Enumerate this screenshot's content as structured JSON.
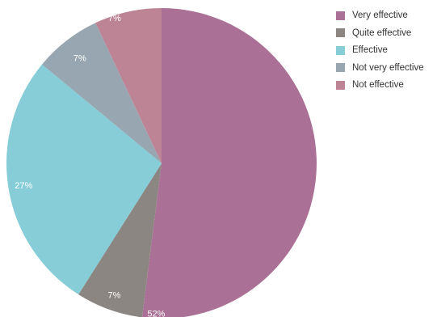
{
  "chart_data": {
    "type": "pie",
    "categories": [
      "Very effective",
      "Quite effective",
      "Effective",
      "Not very effective",
      "Not effective"
    ],
    "values": [
      52,
      7,
      27,
      7,
      7
    ],
    "value_labels": [
      "52%",
      "7%",
      "27%",
      "7%",
      "7%"
    ],
    "colors": [
      "#ab7096",
      "#8b8682",
      "#86cdd8",
      "#97a6b0",
      "#bd8496"
    ],
    "start": "12 o'clock",
    "direction": "clockwise",
    "legend_position": "top-right"
  }
}
